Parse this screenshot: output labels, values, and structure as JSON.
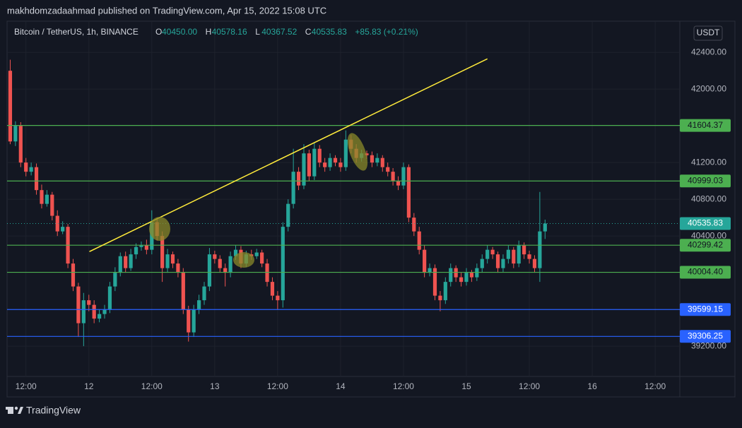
{
  "page": {
    "published": "makhdomzadaahmad published on TradingView.com, Apr 15, 2022 15:08 UTC",
    "currency_button": "USDT",
    "footer_brand": "TradingView"
  },
  "chart_data": {
    "type": "candlestick",
    "title": "Bitcoin / TetherUS, 1h, BINANCE",
    "ohlc_legend": [
      {
        "label": "O",
        "value": "40450.00"
      },
      {
        "label": "H",
        "value": "40578.16"
      },
      {
        "label": "L",
        "value": "40367.52"
      },
      {
        "label": "C",
        "value": "40535.83"
      }
    ],
    "change": "+85.83 (+0.21%)",
    "up_color": "#26a69a",
    "down_color": "#ef5350",
    "x": [
      9,
      10,
      11,
      12,
      13,
      14,
      15,
      16,
      17,
      18,
      19,
      20,
      21,
      22,
      23,
      24,
      25,
      26,
      27,
      28,
      29,
      30,
      31,
      32,
      33,
      34,
      35,
      36,
      37,
      38,
      39,
      40,
      41,
      42,
      43,
      44,
      45,
      46,
      47,
      48,
      49,
      50,
      51,
      52,
      53,
      54,
      55,
      56,
      57,
      58,
      59,
      60,
      61,
      62,
      63,
      64,
      65,
      66,
      67,
      68,
      69,
      70,
      71,
      72,
      73,
      74,
      75,
      76,
      77,
      78,
      79,
      80,
      81,
      82,
      83,
      84,
      85,
      86,
      87,
      88,
      89,
      90,
      91,
      92,
      93,
      94,
      95,
      96,
      97,
      98,
      99,
      100,
      101,
      102,
      103,
      104,
      105,
      106,
      107,
      108,
      109,
      110,
      111
    ],
    "open": [
      42200,
      41430,
      41600,
      41200,
      41100,
      41150,
      40900,
      40750,
      40850,
      40620,
      40450,
      40500,
      40100,
      39850,
      39450,
      39700,
      39650,
      39500,
      39550,
      39600,
      39850,
      40000,
      40180,
      40050,
      40200,
      40280,
      40300,
      40250,
      40550,
      40400,
      40050,
      40200,
      40100,
      40000,
      39600,
      39350,
      39600,
      39700,
      39850,
      40200,
      40150,
      40050,
      40000,
      40180,
      40250,
      40100,
      40200,
      40180,
      40220,
      40100,
      39900,
      39750,
      39700,
      40500,
      40750,
      41100,
      40950,
      41300,
      41050,
      41350,
      41200,
      41150,
      41250,
      41200,
      41150,
      41450,
      41350,
      41250,
      41300,
      41280,
      41200,
      41250,
      41150,
      41100,
      41000,
      40950,
      41150,
      40600,
      40450,
      40250,
      40000,
      40050,
      39750,
      39700,
      39900,
      40050,
      39950,
      39900,
      40000,
      39950,
      40050,
      40150,
      40250,
      40200,
      40050,
      40150,
      40250,
      40100,
      40300,
      40200,
      40150,
      40050,
      40450
    ],
    "high": [
      42320,
      41650,
      41640,
      41250,
      41200,
      41190,
      40960,
      40900,
      40880,
      40680,
      40560,
      40530,
      40150,
      39890,
      39780,
      39760,
      39700,
      39600,
      39650,
      39900,
      40060,
      40220,
      40230,
      40260,
      40320,
      40340,
      40360,
      40680,
      40600,
      40450,
      40260,
      40230,
      40150,
      40050,
      39640,
      39650,
      39760,
      39900,
      40270,
      40240,
      40190,
      40100,
      40230,
      40300,
      40290,
      40240,
      40250,
      40260,
      40250,
      40150,
      39950,
      39800,
      40550,
      40800,
      41350,
      41150,
      41400,
      41340,
      41420,
      41390,
      41250,
      41300,
      41280,
      41250,
      41550,
      41500,
      41400,
      41340,
      41330,
      41320,
      41300,
      41280,
      41200,
      41140,
      41050,
      41200,
      41180,
      40650,
      40500,
      40300,
      40100,
      40090,
      39800,
      39950,
      40100,
      40080,
      40000,
      40050,
      40030,
      40100,
      40200,
      40300,
      40280,
      40230,
      40200,
      40300,
      40280,
      40350,
      40330,
      40240,
      40190,
      40880,
      40578.16
    ],
    "low": [
      41400,
      41380,
      41150,
      41050,
      41060,
      40850,
      40700,
      40720,
      40570,
      40400,
      40420,
      40050,
      39800,
      39300,
      39200,
      39580,
      39450,
      39460,
      39500,
      39560,
      39800,
      39960,
      40000,
      40020,
      40150,
      40240,
      40200,
      40200,
      40350,
      39900,
      40000,
      40050,
      39950,
      39550,
      39250,
      39300,
      39550,
      39650,
      39800,
      40100,
      40000,
      39850,
      39950,
      40140,
      40050,
      40060,
      40140,
      40150,
      40060,
      39850,
      39700,
      39600,
      39620,
      40450,
      40700,
      40900,
      40910,
      41000,
      41010,
      41150,
      41100,
      41110,
      41160,
      41100,
      41110,
      41300,
      41200,
      41210,
      41240,
      41150,
      41160,
      41100,
      41050,
      40950,
      40900,
      40910,
      40550,
      40400,
      40200,
      39950,
      39960,
      39700,
      39580,
      39660,
      39850,
      39900,
      39850,
      39860,
      39900,
      39910,
      40000,
      40100,
      40150,
      40000,
      40010,
      40100,
      40050,
      40060,
      40150,
      40100,
      40000,
      39900,
      40367.52
    ],
    "close": [
      41430,
      41600,
      41200,
      41100,
      41150,
      40900,
      40750,
      40850,
      40620,
      40450,
      40500,
      40100,
      39850,
      39450,
      39700,
      39650,
      39500,
      39550,
      39600,
      39850,
      40000,
      40180,
      40050,
      40200,
      40280,
      40300,
      40250,
      40550,
      40400,
      40050,
      40200,
      40100,
      40000,
      39600,
      39350,
      39600,
      39700,
      39850,
      40200,
      40150,
      40050,
      40000,
      40180,
      40250,
      40100,
      40200,
      40180,
      40220,
      40100,
      39900,
      39750,
      39700,
      40500,
      40750,
      41100,
      40950,
      41300,
      41050,
      41350,
      41200,
      41150,
      41250,
      41200,
      41150,
      41450,
      41350,
      41250,
      41300,
      41280,
      41200,
      41250,
      41150,
      41100,
      41000,
      40950,
      41150,
      40600,
      40450,
      40250,
      40000,
      40050,
      39750,
      39700,
      39900,
      40050,
      39950,
      39900,
      40000,
      39950,
      40050,
      40150,
      40250,
      40200,
      40050,
      40150,
      40250,
      40100,
      40300,
      40200,
      40150,
      40050,
      40450,
      40535.83
    ],
    "xlim": [
      8.4,
      136.7
    ],
    "xticks": [
      {
        "value": 12,
        "label": "12:00"
      },
      {
        "value": 24,
        "label": "12"
      },
      {
        "value": 36,
        "label": "12:00"
      },
      {
        "value": 48,
        "label": "13"
      },
      {
        "value": 60,
        "label": "12:00"
      },
      {
        "value": 72,
        "label": "14"
      },
      {
        "value": 84,
        "label": "12:00"
      },
      {
        "value": 96,
        "label": "15"
      },
      {
        "value": 108,
        "label": "12:00"
      },
      {
        "value": 120,
        "label": "16"
      },
      {
        "value": 132,
        "label": "12:00"
      }
    ],
    "ylim": [
      38870,
      42740
    ],
    "yticks": [
      {
        "value": 42400,
        "label": "42400.00"
      },
      {
        "value": 42000,
        "label": "42000.00"
      },
      {
        "value": 41200,
        "label": "41200.00"
      },
      {
        "value": 40800,
        "label": "40800.00"
      },
      {
        "value": 40400,
        "label": "40400.00"
      },
      {
        "value": 39200,
        "label": "39200.00"
      }
    ],
    "grid": true,
    "levels": [
      {
        "value": 41604.37,
        "label": "41604.37",
        "color": "#4caf50"
      },
      {
        "value": 40999.03,
        "label": "40999.03",
        "color": "#4caf50"
      },
      {
        "value": 40299.42,
        "label": "40299.42",
        "color": "#4caf50"
      },
      {
        "value": 40004.4,
        "label": "40004.40",
        "color": "#4caf50"
      },
      {
        "value": 39599.15,
        "label": "39599.15",
        "color": "#2962ff"
      },
      {
        "value": 39306.25,
        "label": "39306.25",
        "color": "#2962ff"
      }
    ],
    "last_price": 40535.83,
    "trend_line": {
      "x": [
        24.1,
        100
      ],
      "y": [
        40230,
        42330
      ],
      "color": "#ffeb3b"
    }
  }
}
